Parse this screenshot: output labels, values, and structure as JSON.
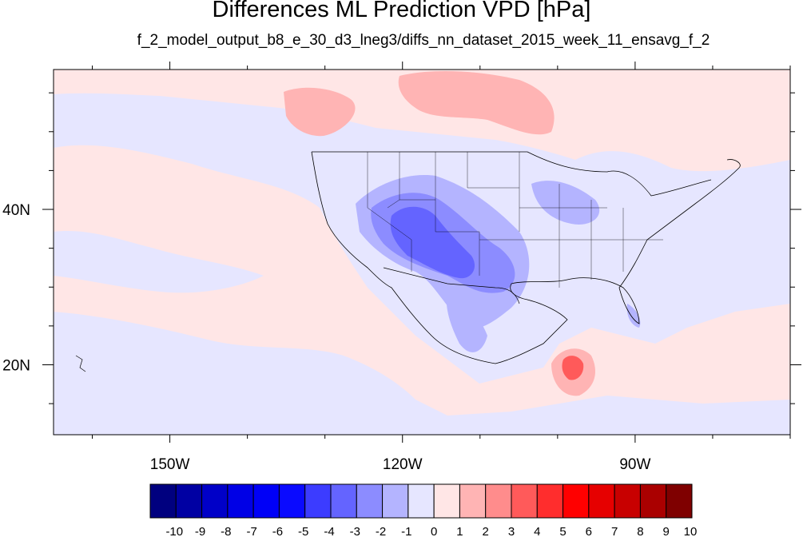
{
  "title": "Differences ML Prediction VPD [hPa]",
  "subtitle": "f_2_model_output_b8_e_30_d3_lneg3/diffs_nn_dataset_2015_week_11_ensavg_f_2",
  "map": {
    "lon_range": [
      -165,
      -70
    ],
    "lat_range": [
      11,
      58
    ],
    "x_ticks": [
      {
        "lon": -150,
        "label": "150W"
      },
      {
        "lon": -120,
        "label": "120W"
      },
      {
        "lon": -90,
        "label": "90W"
      }
    ],
    "y_ticks": [
      {
        "lat": 40,
        "label": "40N"
      },
      {
        "lat": 20,
        "label": "20N"
      }
    ],
    "background_value": "0 to 1",
    "ocean_tint_value": "-1 to 0",
    "features": [
      {
        "name": "canada-positive-anomaly",
        "value_range": "1 to 2"
      },
      {
        "name": "us-southwest-negative-anomaly",
        "value_range": "-5 to -1"
      },
      {
        "name": "yucatan-positive-anomaly",
        "value_range": "1 to 6"
      }
    ]
  },
  "colorbar": {
    "labels": [
      "-10",
      "-9",
      "-8",
      "-7",
      "-6",
      "-5",
      "-4",
      "-3",
      "-2",
      "-1",
      "0",
      "1",
      "2",
      "3",
      "4",
      "5",
      "6",
      "7",
      "8",
      "9",
      "10"
    ],
    "colors": [
      "#00007f",
      "#0000a3",
      "#0000c8",
      "#0000e6",
      "#0000f7",
      "#0a0aff",
      "#3c3cff",
      "#6464ff",
      "#8c8cff",
      "#b4b4ff",
      "#e6e6ff",
      "#ffe6e6",
      "#ffb4b4",
      "#ff8c8c",
      "#ff5a5a",
      "#ff2d2d",
      "#ff0000",
      "#e60000",
      "#c80000",
      "#aa0000",
      "#7f0000"
    ]
  }
}
